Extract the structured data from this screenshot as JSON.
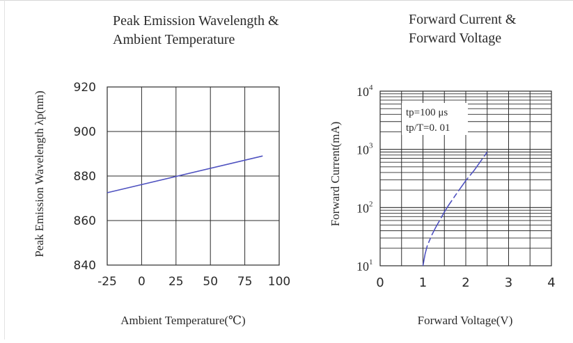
{
  "chart_data": [
    {
      "type": "line",
      "title": "Peak Emission Wavelength &\nAmbient Temperature",
      "xlabel": "Ambient Temperature(℃)",
      "ylabel": "Peak Emission Wavelength λp(nm)",
      "xlim": [
        -25,
        100
      ],
      "ylim": [
        840,
        920
      ],
      "x_ticks": [
        "-25",
        "0",
        "25",
        "50",
        "75",
        "100"
      ],
      "y_ticks": [
        "840",
        "860",
        "880",
        "900",
        "920"
      ],
      "grid": true,
      "series": [
        {
          "x": [
            -25,
            88
          ],
          "y": [
            872.5,
            889
          ]
        }
      ],
      "colors": {
        "line": "#4f52c0",
        "grid": "#2b2b2b"
      }
    },
    {
      "type": "line",
      "title": "Forward Current &\nForward Voltage",
      "xlabel": "Forward Voltage(V)",
      "ylabel": "Forward Current(mA)",
      "xlim": [
        0,
        4
      ],
      "ylim": [
        10,
        10000
      ],
      "y_scale": "log",
      "x_ticks": [
        "0",
        "1",
        "2",
        "3",
        "4"
      ],
      "y_ticks": [
        {
          "base": "10",
          "exp": "1"
        },
        {
          "base": "10",
          "exp": "2"
        },
        {
          "base": "10",
          "exp": "3"
        },
        {
          "base": "10",
          "exp": "4"
        }
      ],
      "annotations": [
        "tp=100 μs",
        "tp/T=0. 01"
      ],
      "grid": true,
      "series": [
        {
          "x": [
            1.0,
            1.05,
            1.1,
            1.2,
            1.3,
            1.4,
            1.5,
            1.6,
            1.8,
            2.0,
            2.2,
            2.5
          ],
          "y": [
            10,
            16,
            22,
            33,
            46,
            62,
            84,
            110,
            180,
            290,
            440,
            900
          ]
        }
      ],
      "colors": {
        "line": "#4f52c0",
        "grid": "#2b2b2b"
      }
    }
  ]
}
